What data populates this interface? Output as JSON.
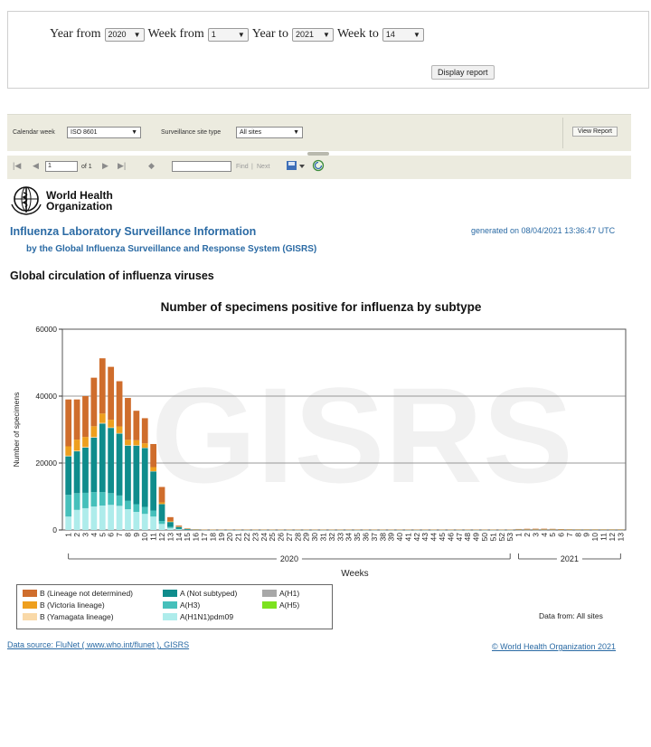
{
  "form": {
    "year_from_label": "Year from",
    "year_from_value": "2020",
    "week_from_label": "Week from",
    "week_from_value": "1",
    "year_to_label": "Year to",
    "year_to_value": "2021",
    "week_to_label": "Week to",
    "week_to_value": "14",
    "display_button": "Display report"
  },
  "toolbar": {
    "calendar_week_label": "Calendar week",
    "calendar_week_value": "ISO 8601",
    "site_type_label": "Surveillance site type",
    "site_type_value": "All sites",
    "view_report_button": "View Report",
    "page_value": "1",
    "page_of": "of 1",
    "find_label": "Find",
    "next_label": "Next",
    "separator": "|"
  },
  "header": {
    "org_line1": "World Health",
    "org_line2": "Organization",
    "title": "Influenza Laboratory Surveillance Information",
    "subtitle": "by the Global Influenza Surveillance and Response System (GISRS)",
    "generated": "generated on 08/04/2021 13:36:47 UTC",
    "section_title": "Global circulation of influenza viruses"
  },
  "colors": {
    "b_not_determined": "#cf6d2c",
    "b_victoria": "#ee9f1e",
    "b_yamagata": "#f9d9a8",
    "a_not_subtyped": "#0f8c8c",
    "a_h3": "#46c0bb",
    "a_h1n1pdm09": "#aeeceb",
    "a_h1": "#a8a8a8",
    "a_h5": "#7ce21e",
    "accent": "#2a6aa4"
  },
  "chart_data": {
    "type": "bar",
    "stacked": true,
    "title": "Number of specimens positive for influenza by subtype",
    "xlabel": "Weeks",
    "ylabel": "Number of specimens",
    "watermark": "GISRS",
    "ylim": [
      0,
      60000
    ],
    "yticks": [
      "0",
      "20000",
      "40000",
      "60000"
    ],
    "grid": true,
    "year_groups": [
      {
        "label": "2020",
        "start_week_index": 0,
        "end_week_index": 52
      },
      {
        "label": "2021",
        "start_week_index": 53,
        "end_week_index": 65
      }
    ],
    "categories": [
      "1",
      "2",
      "3",
      "4",
      "5",
      "6",
      "7",
      "8",
      "9",
      "10",
      "11",
      "12",
      "13",
      "14",
      "15",
      "16",
      "17",
      "18",
      "19",
      "20",
      "21",
      "22",
      "23",
      "24",
      "25",
      "26",
      "27",
      "28",
      "29",
      "30",
      "31",
      "32",
      "33",
      "34",
      "35",
      "36",
      "37",
      "38",
      "39",
      "40",
      "41",
      "42",
      "43",
      "44",
      "45",
      "46",
      "47",
      "48",
      "49",
      "50",
      "51",
      "52",
      "53",
      "1",
      "2",
      "3",
      "4",
      "5",
      "6",
      "7",
      "8",
      "9",
      "10",
      "11",
      "12",
      "13"
    ],
    "series": [
      {
        "name": "A(H1N1)pdm09",
        "values": [
          4000,
          6000,
          6500,
          7000,
          7300,
          7500,
          7200,
          6200,
          5400,
          4800,
          4000,
          1800,
          600,
          200,
          80,
          40,
          20,
          10,
          10,
          10,
          10,
          10,
          10,
          10,
          10,
          10,
          10,
          10,
          10,
          10,
          10,
          10,
          10,
          10,
          10,
          10,
          10,
          10,
          10,
          10,
          10,
          10,
          10,
          10,
          10,
          10,
          10,
          10,
          10,
          10,
          10,
          10,
          10,
          20,
          20,
          20,
          20,
          20,
          20,
          20,
          20,
          20,
          20,
          20,
          20,
          20
        ]
      },
      {
        "name": "A(H3)",
        "values": [
          6500,
          5000,
          4600,
          4300,
          4000,
          3500,
          3100,
          2500,
          2300,
          2100,
          1800,
          900,
          300,
          100,
          40,
          20,
          10,
          10,
          10,
          10,
          10,
          10,
          10,
          10,
          10,
          10,
          10,
          10,
          10,
          10,
          10,
          10,
          10,
          10,
          10,
          10,
          10,
          10,
          10,
          10,
          10,
          10,
          10,
          10,
          10,
          10,
          10,
          10,
          10,
          10,
          10,
          10,
          10,
          30,
          30,
          30,
          30,
          30,
          30,
          30,
          30,
          30,
          30,
          30,
          30,
          30
        ]
      },
      {
        "name": "A(Not subtyped)",
        "values": [
          11500,
          12500,
          13500,
          16300,
          20500,
          19500,
          18500,
          16500,
          17500,
          17600,
          11700,
          5000,
          1500,
          600,
          200,
          80,
          50,
          30,
          20,
          20,
          20,
          20,
          20,
          20,
          20,
          20,
          20,
          20,
          20,
          20,
          20,
          20,
          20,
          20,
          20,
          20,
          20,
          20,
          20,
          20,
          20,
          20,
          20,
          20,
          20,
          20,
          20,
          20,
          20,
          20,
          20,
          20,
          20,
          80,
          80,
          80,
          80,
          80,
          60,
          60,
          60,
          60,
          60,
          60,
          60,
          60
        ]
      },
      {
        "name": "A(H1)",
        "values": [
          0,
          0,
          0,
          0,
          0,
          0,
          0,
          0,
          0,
          0,
          0,
          0,
          0,
          0,
          0,
          0,
          0,
          0,
          0,
          0,
          0,
          0,
          0,
          0,
          0,
          0,
          0,
          0,
          0,
          0,
          0,
          0,
          0,
          0,
          0,
          0,
          0,
          0,
          0,
          0,
          0,
          0,
          0,
          0,
          0,
          0,
          0,
          0,
          0,
          0,
          0,
          0,
          0,
          0,
          0,
          0,
          0,
          0,
          0,
          0,
          0,
          0,
          0,
          0,
          0,
          0
        ]
      },
      {
        "name": "A(H5)",
        "values": [
          0,
          0,
          0,
          0,
          0,
          0,
          0,
          0,
          0,
          0,
          0,
          0,
          0,
          0,
          0,
          0,
          0,
          0,
          0,
          0,
          0,
          0,
          0,
          0,
          0,
          0,
          0,
          0,
          0,
          0,
          0,
          0,
          0,
          0,
          0,
          0,
          0,
          0,
          0,
          0,
          0,
          0,
          0,
          0,
          0,
          0,
          0,
          0,
          0,
          0,
          0,
          0,
          0,
          0,
          0,
          0,
          0,
          0,
          0,
          0,
          0,
          0,
          0,
          0,
          0,
          0
        ]
      },
      {
        "name": "B (Yamagata lineage)",
        "values": [
          200,
          200,
          200,
          200,
          200,
          150,
          150,
          150,
          120,
          100,
          80,
          50,
          30,
          10,
          5,
          5,
          5,
          5,
          5,
          5,
          5,
          5,
          5,
          5,
          5,
          5,
          5,
          5,
          5,
          5,
          5,
          5,
          5,
          5,
          5,
          5,
          5,
          5,
          5,
          5,
          5,
          5,
          5,
          5,
          5,
          5,
          5,
          5,
          5,
          5,
          5,
          5,
          5,
          5,
          5,
          5,
          5,
          5,
          5,
          5,
          5,
          5,
          5,
          5,
          5,
          5
        ]
      },
      {
        "name": "B (Victoria lineage)",
        "values": [
          2800,
          3300,
          3000,
          3200,
          2800,
          2300,
          2000,
          1600,
          1500,
          1300,
          1200,
          500,
          200,
          80,
          40,
          20,
          10,
          10,
          10,
          10,
          10,
          10,
          10,
          10,
          10,
          10,
          10,
          10,
          10,
          10,
          10,
          10,
          10,
          10,
          10,
          10,
          10,
          10,
          10,
          10,
          10,
          10,
          10,
          10,
          10,
          10,
          10,
          10,
          10,
          10,
          10,
          10,
          10,
          30,
          30,
          30,
          30,
          30,
          30,
          30,
          30,
          30,
          30,
          30,
          30,
          30
        ]
      },
      {
        "name": "B (Lineage not determined)",
        "values": [
          14000,
          12000,
          12200,
          14500,
          16500,
          15800,
          13500,
          12500,
          8800,
          7500,
          6900,
          4600,
          1200,
          300,
          100,
          50,
          30,
          20,
          20,
          20,
          20,
          20,
          20,
          20,
          20,
          20,
          20,
          20,
          20,
          20,
          20,
          20,
          20,
          20,
          20,
          20,
          20,
          20,
          20,
          20,
          20,
          20,
          20,
          20,
          20,
          20,
          20,
          20,
          20,
          20,
          20,
          20,
          20,
          120,
          180,
          200,
          200,
          160,
          120,
          80,
          60,
          60,
          60,
          60,
          60,
          60
        ]
      }
    ]
  },
  "legend": {
    "items": [
      {
        "label": "B (Lineage not determined)",
        "color_key": "b_not_determined"
      },
      {
        "label": "B (Victoria lineage)",
        "color_key": "b_victoria"
      },
      {
        "label": "B (Yamagata lineage)",
        "color_key": "b_yamagata"
      },
      {
        "label": "A (Not subtyped)",
        "color_key": "a_not_subtyped"
      },
      {
        "label": "A(H3)",
        "color_key": "a_h3"
      },
      {
        "label": "A(H1N1)pdm09",
        "color_key": "a_h1n1pdm09"
      },
      {
        "label": "A(H1)",
        "color_key": "a_h1"
      },
      {
        "label": "A(H5)",
        "color_key": "a_h5"
      }
    ],
    "data_from": "Data from: All sites"
  },
  "footer": {
    "data_source": "Data source: FluNet ( www.who.int/flunet ), GISRS",
    "copyright": "© World Health Organization 2021"
  }
}
